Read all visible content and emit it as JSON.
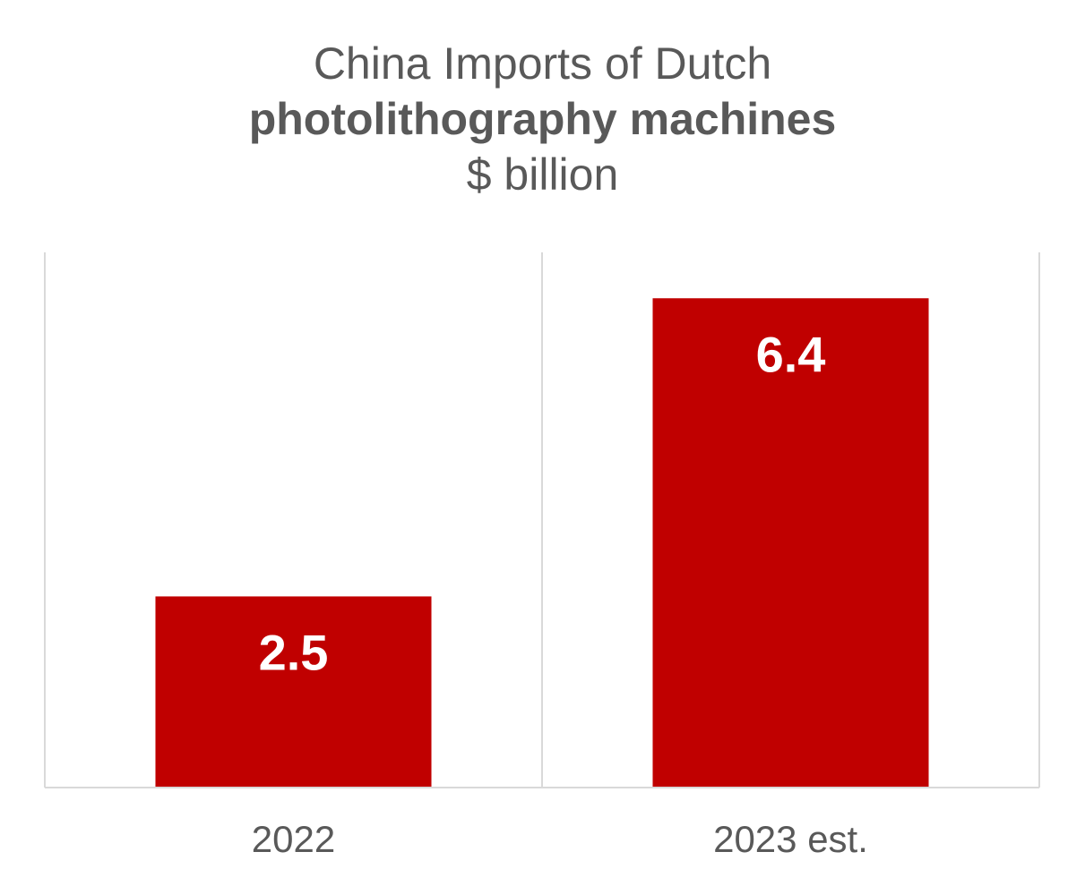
{
  "chart_data": {
    "type": "bar",
    "title_line1": "China Imports of Dutch",
    "title_line2": "photolithography machines",
    "subtitle": "$ billion",
    "categories": [
      "2022",
      "2023 est."
    ],
    "values": [
      2.5,
      6.4
    ],
    "value_labels": [
      "2.5",
      "6.4"
    ],
    "ylim": [
      0,
      7.0
    ],
    "grid": false,
    "legend": "none",
    "colors": {
      "bar": "#c00000",
      "axis": "#d9d9d9",
      "text": "#595959",
      "value_label": "#ffffff"
    }
  }
}
